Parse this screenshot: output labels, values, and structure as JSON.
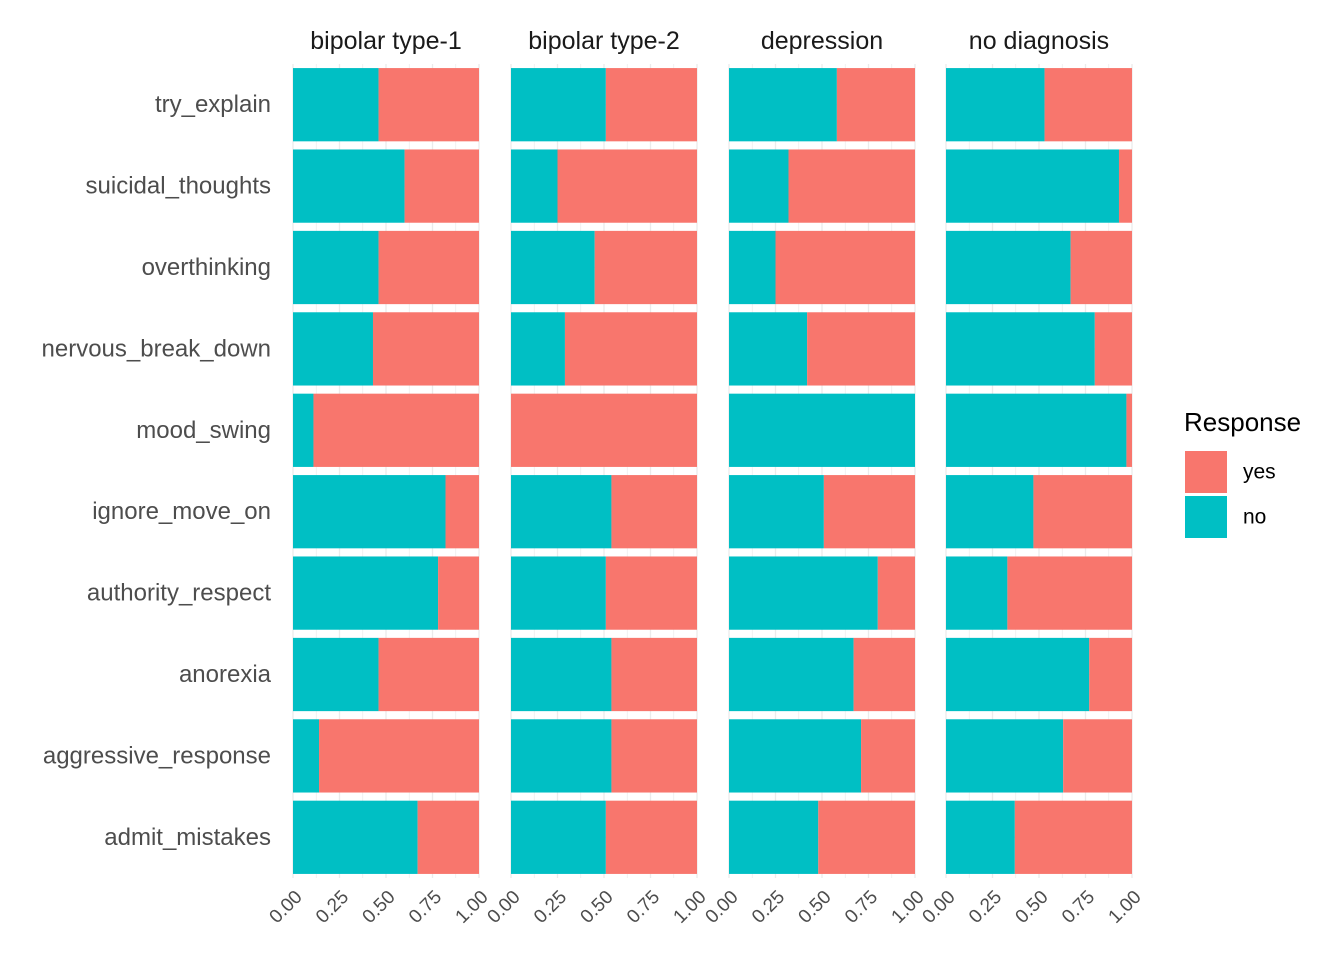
{
  "chart_data": {
    "type": "bar",
    "orientation": "horizontal",
    "stacked": true,
    "facets": [
      "bipolar type-1",
      "bipolar type-2",
      "depression",
      "no diagnosis"
    ],
    "categories": [
      "try_explain",
      "suicidal_thoughts",
      "overthinking",
      "nervous_break_down",
      "mood_swing",
      "ignore_move_on",
      "authority_respect",
      "anorexia",
      "aggressive_response",
      "admit_mistakes"
    ],
    "x_ticks": [
      "0.00",
      "0.25",
      "0.50",
      "0.75",
      "1.00"
    ],
    "xlim": [
      0,
      1
    ],
    "grid": true,
    "legend": {
      "title": "Response",
      "position": "right",
      "entries": [
        {
          "label": "yes",
          "color": "#F8766D"
        },
        {
          "label": "no",
          "color": "#00BFC4"
        }
      ]
    },
    "series": [
      {
        "name": "no",
        "color": "#00BFC4",
        "values_by_facet": {
          "bipolar type-1": [
            0.46,
            0.6,
            0.46,
            0.43,
            0.11,
            0.82,
            0.78,
            0.46,
            0.14,
            0.67
          ],
          "bipolar type-2": [
            0.51,
            0.25,
            0.45,
            0.29,
            0.0,
            0.54,
            0.51,
            0.54,
            0.54,
            0.51
          ],
          "depression": [
            0.58,
            0.32,
            0.25,
            0.42,
            1.0,
            0.51,
            0.8,
            0.67,
            0.71,
            0.48
          ],
          "no diagnosis": [
            0.53,
            0.93,
            0.67,
            0.8,
            0.97,
            0.47,
            0.33,
            0.77,
            0.63,
            0.37
          ]
        }
      },
      {
        "name": "yes",
        "color": "#F8766D",
        "values_by_facet": {
          "bipolar type-1": [
            0.54,
            0.4,
            0.54,
            0.57,
            0.89,
            0.18,
            0.22,
            0.54,
            0.86,
            0.33
          ],
          "bipolar type-2": [
            0.49,
            0.75,
            0.55,
            0.71,
            1.0,
            0.46,
            0.49,
            0.46,
            0.46,
            0.49
          ],
          "depression": [
            0.42,
            0.68,
            0.75,
            0.58,
            0.0,
            0.49,
            0.2,
            0.33,
            0.29,
            0.52
          ],
          "no diagnosis": [
            0.47,
            0.07,
            0.33,
            0.2,
            0.03,
            0.53,
            0.67,
            0.23,
            0.37,
            0.63
          ]
        }
      }
    ]
  }
}
